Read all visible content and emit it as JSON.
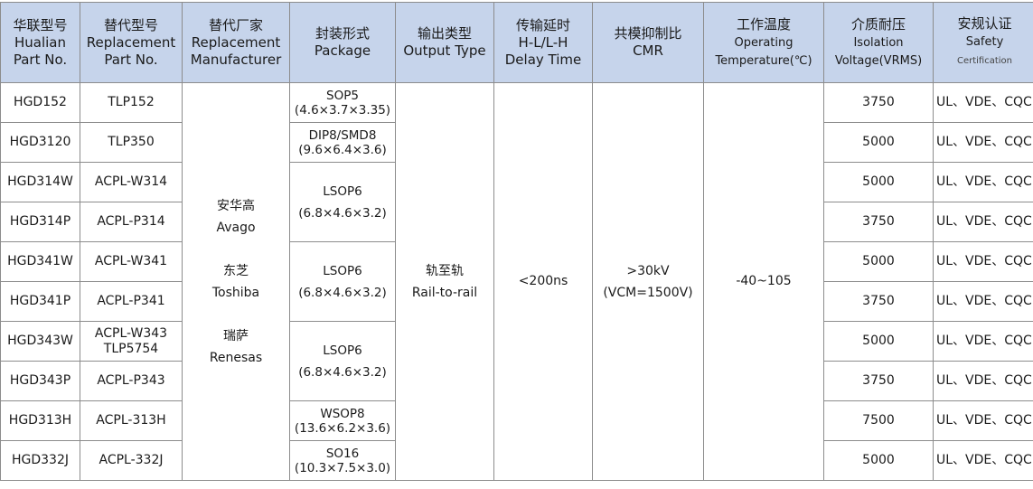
{
  "headers": [
    [
      "华联型号",
      "Hualian",
      "Part No."
    ],
    [
      "替代型号",
      "Replacement",
      "Part No."
    ],
    [
      "替代厂家",
      "Replacement",
      "Manufacturer"
    ],
    [
      "封装形式",
      "Package"
    ],
    [
      "输出类型",
      "Output  Type"
    ],
    [
      "传输延时",
      "H-L/L-H",
      "Delay  Time"
    ],
    [
      "共模抑制比",
      "CMR"
    ],
    [
      "工作温度",
      "Operating",
      "Temperature(℃)"
    ],
    [
      "介质耐压",
      "Isolation",
      "Voltage(VRMS)"
    ],
    [
      "安规认证",
      "Safety",
      "Certification"
    ]
  ],
  "rows": [
    {
      "part": "HGD152",
      "replacement": "TLP152",
      "voltage": "3750",
      "cert": "UL、VDE、CQC"
    },
    {
      "part": "HGD3120",
      "replacement": "TLP350",
      "voltage": "5000",
      "cert": "UL、VDE、CQC"
    },
    {
      "part": "HGD314W",
      "replacement": "ACPL-W314",
      "voltage": "5000",
      "cert": "UL、VDE、CQC"
    },
    {
      "part": "HGD314P",
      "replacement": "ACPL-P314",
      "voltage": "3750",
      "cert": "UL、VDE、CQC"
    },
    {
      "part": "HGD341W",
      "replacement": "ACPL-W341",
      "voltage": "5000",
      "cert": "UL、VDE、CQC"
    },
    {
      "part": "HGD341P",
      "replacement": "ACPL-P341",
      "voltage": "3750",
      "cert": "UL、VDE、CQC"
    },
    {
      "part": "HGD343W",
      "replacement": "ACPL-W343",
      "replacement2": "TLP5754",
      "voltage": "5000",
      "cert": "UL、VDE、CQC"
    },
    {
      "part": "HGD343P",
      "replacement": "ACPL-P343",
      "voltage": "3750",
      "cert": "UL、VDE、CQC"
    },
    {
      "part": "HGD313H",
      "replacement": "ACPL-313H",
      "voltage": "7500",
      "cert": "UL、VDE、CQC"
    },
    {
      "part": "HGD332J",
      "replacement": "ACPL-332J",
      "voltage": "5000",
      "cert": "UL、VDE、CQC"
    }
  ],
  "packages": [
    {
      "name": "SOP5",
      "dims": "(4.6×3.7×3.35)"
    },
    {
      "name": "DIP8/SMD8",
      "dims": "(9.6×6.4×3.6)"
    },
    {
      "name": "LSOP6",
      "dims": "(6.8×4.6×3.2)"
    },
    {
      "name": "LSOP6",
      "dims": "(6.8×4.6×3.2)"
    },
    {
      "name": "LSOP6",
      "dims": "(6.8×4.6×3.2)"
    },
    {
      "name": "WSOP8",
      "dims": "(13.6×6.2×3.6)"
    },
    {
      "name": "SO16",
      "dims": "(10.3×7.5×3.0)"
    }
  ],
  "manufacturers": [
    [
      "安华高",
      "Avago"
    ],
    [
      "东芝",
      "Toshiba"
    ],
    [
      "瑞萨",
      "Renesas"
    ]
  ],
  "output_type": [
    "轨至轨",
    "Rail-to-rail"
  ],
  "delay": "<200ns",
  "cmr": [
    ">30kV",
    "(VCM=1500V)"
  ],
  "temperature": "-40~105",
  "colors": {
    "header_bg": "#c6d4eb",
    "border": "#8c8c8c"
  }
}
